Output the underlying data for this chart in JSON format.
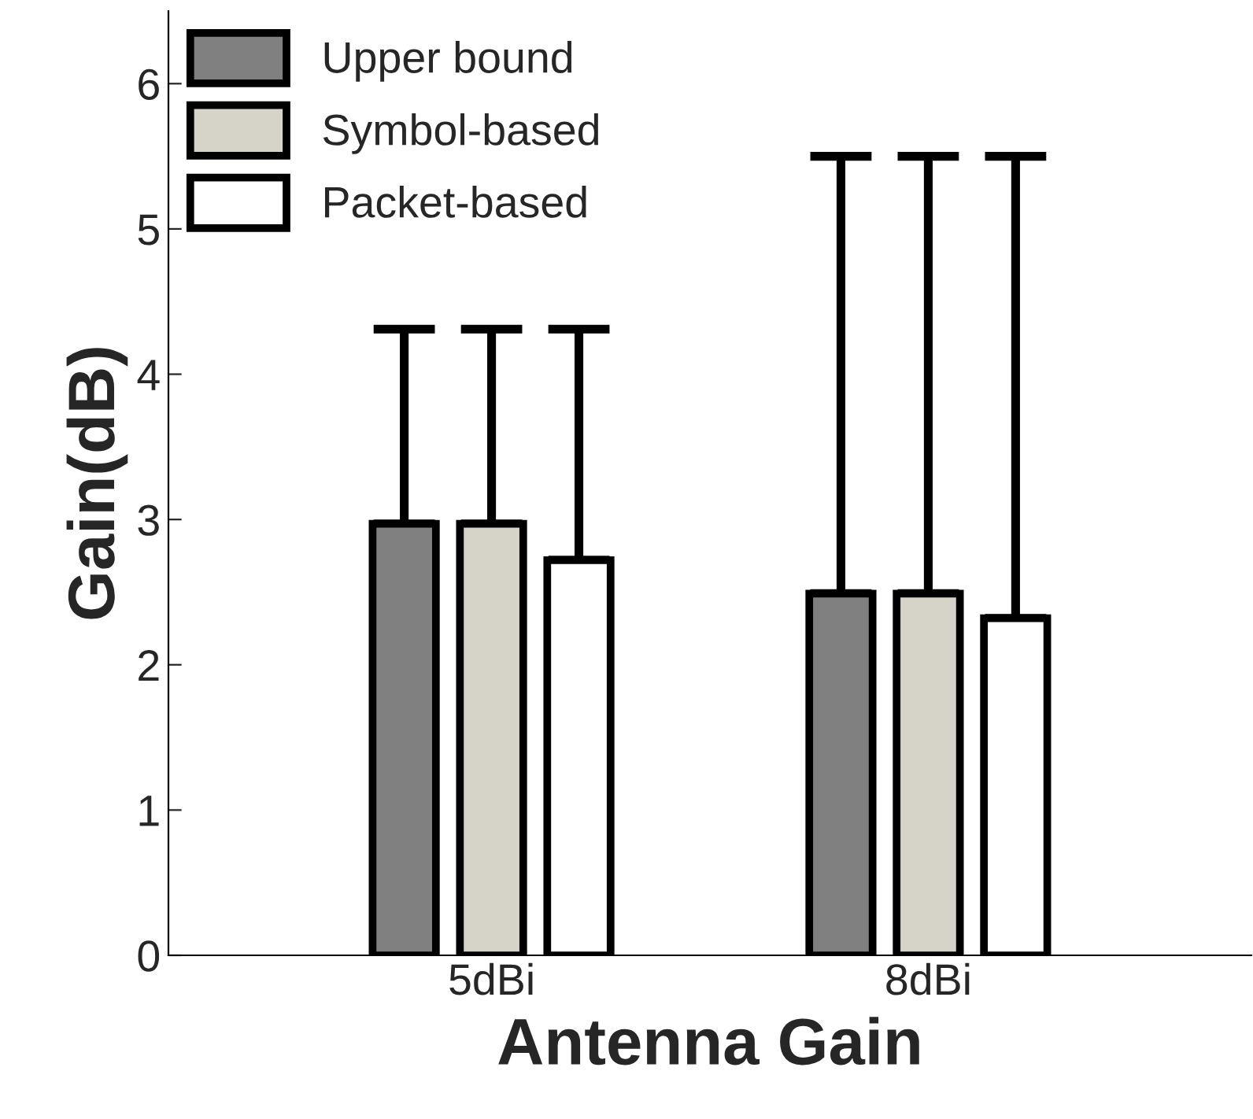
{
  "chart_data": {
    "type": "bar",
    "xlabel": "Antenna Gain",
    "ylabel": "Gain(dB)",
    "categories": [
      "5dBi",
      "8dBi"
    ],
    "series": [
      {
        "name": "Upper bound",
        "color": "#808080",
        "values": [
          2.97,
          2.49
        ],
        "errors": [
          [
            2.97,
            4.31
          ],
          [
            2.49,
            5.5
          ]
        ]
      },
      {
        "name": "Symbol-based",
        "color": "#d6d4c8",
        "values": [
          2.97,
          2.49
        ],
        "errors": [
          [
            2.97,
            4.31
          ],
          [
            2.49,
            5.5
          ]
        ]
      },
      {
        "name": "Packet-based",
        "color": "#ffffff",
        "values": [
          2.72,
          2.32
        ],
        "errors": [
          [
            2.72,
            4.31
          ],
          [
            2.32,
            5.5
          ]
        ]
      }
    ],
    "ylim": [
      0,
      6.5
    ],
    "yticks": [
      0,
      1,
      2,
      3,
      4,
      5,
      6
    ],
    "grid": false,
    "legend": "top left"
  }
}
